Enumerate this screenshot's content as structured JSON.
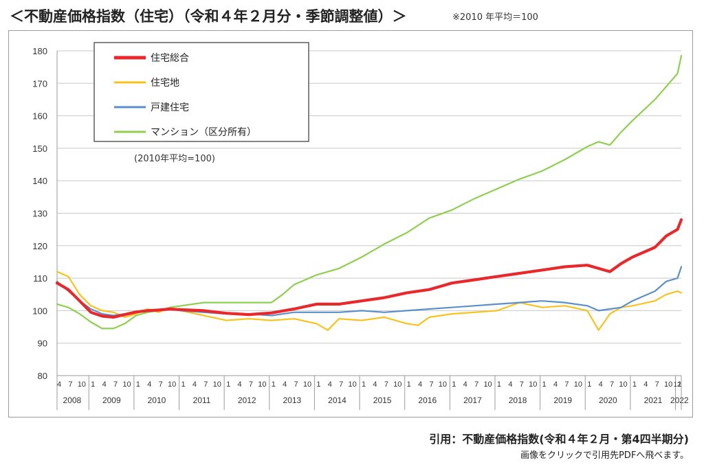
{
  "header": {
    "title": "＜不動産価格指数（住宅）（令和４年２月分・季節調整値）＞",
    "note": "※2010 年平均＝100"
  },
  "footer": {
    "citation": "引用：不動産価格指数(令和４年２月・第4四半期分)",
    "link_text": "画像をクリックで引用先PDFへ飛べます。"
  },
  "colors": {
    "総合": "#e8282b",
    "住宅地": "#f7c21c",
    "戸建住宅": "#5b8fca",
    "マンション": "#8dcf4f",
    "grid": "#c8c8c8"
  },
  "chart_data": {
    "type": "line",
    "y_ticks": [
      80,
      90,
      100,
      110,
      120,
      130,
      140,
      150,
      160,
      170,
      180
    ],
    "ylim": [
      80,
      180
    ],
    "grid": true,
    "legend_position": "top-left",
    "annotation": "(2010年平均=100)",
    "x_start": "2008-04",
    "x_end": "2022-02",
    "years": [
      "2008",
      "2009",
      "2010",
      "2011",
      "2012",
      "2013",
      "2014",
      "2015",
      "2016",
      "2017",
      "2018",
      "2019",
      "2020",
      "2021",
      "2022"
    ],
    "month_ticks": [
      "1",
      "4",
      "7",
      "10"
    ],
    "last_month_tick": "12",
    "series": [
      {
        "name": "住宅総合",
        "key": "総合",
        "points": [
          [
            "2008-04",
            108.5
          ],
          [
            "2008-07",
            106.5
          ],
          [
            "2008-10",
            103
          ],
          [
            "2009-01",
            99.5
          ],
          [
            "2009-04",
            98.3
          ],
          [
            "2009-07",
            98
          ],
          [
            "2009-10",
            98.8
          ],
          [
            "2010-01",
            99.6
          ],
          [
            "2010-04",
            100
          ],
          [
            "2010-07",
            100.2
          ],
          [
            "2010-10",
            100.5
          ],
          [
            "2011-01",
            100.3
          ],
          [
            "2011-07",
            100
          ],
          [
            "2012-01",
            99.2
          ],
          [
            "2012-07",
            98.8
          ],
          [
            "2013-01",
            99.3
          ],
          [
            "2013-07",
            100.5
          ],
          [
            "2014-01",
            102
          ],
          [
            "2014-07",
            102
          ],
          [
            "2015-01",
            103
          ],
          [
            "2015-07",
            104
          ],
          [
            "2016-01",
            105.5
          ],
          [
            "2016-07",
            106.5
          ],
          [
            "2017-01",
            108.5
          ],
          [
            "2017-07",
            109.5
          ],
          [
            "2018-01",
            110.5
          ],
          [
            "2018-07",
            111.5
          ],
          [
            "2019-01",
            112.5
          ],
          [
            "2019-07",
            113.5
          ],
          [
            "2020-01",
            114
          ],
          [
            "2020-04",
            113
          ],
          [
            "2020-07",
            112
          ],
          [
            "2020-10",
            114.5
          ],
          [
            "2021-01",
            116.5
          ],
          [
            "2021-07",
            119.5
          ],
          [
            "2021-10",
            123
          ],
          [
            "2022-01",
            125
          ],
          [
            "2022-02",
            128
          ]
        ]
      },
      {
        "name": "住宅地",
        "key": "住宅地",
        "points": [
          [
            "2008-04",
            112
          ],
          [
            "2008-07",
            110.5
          ],
          [
            "2008-10",
            105
          ],
          [
            "2009-01",
            101.5
          ],
          [
            "2009-04",
            100
          ],
          [
            "2009-07",
            99.5
          ],
          [
            "2009-10",
            98
          ],
          [
            "2010-01",
            99
          ],
          [
            "2010-04",
            100.5
          ],
          [
            "2010-07",
            99.5
          ],
          [
            "2010-10",
            101
          ],
          [
            "2011-01",
            100
          ],
          [
            "2011-07",
            98.5
          ],
          [
            "2012-01",
            97
          ],
          [
            "2012-07",
            97.5
          ],
          [
            "2013-01",
            97
          ],
          [
            "2013-07",
            97.5
          ],
          [
            "2014-01",
            96
          ],
          [
            "2014-04",
            94
          ],
          [
            "2014-07",
            97.5
          ],
          [
            "2015-01",
            97
          ],
          [
            "2015-07",
            98
          ],
          [
            "2016-01",
            96
          ],
          [
            "2016-04",
            95.5
          ],
          [
            "2016-07",
            98
          ],
          [
            "2017-01",
            99
          ],
          [
            "2017-07",
            99.5
          ],
          [
            "2018-01",
            100
          ],
          [
            "2018-07",
            102.5
          ],
          [
            "2019-01",
            101
          ],
          [
            "2019-07",
            101.5
          ],
          [
            "2020-01",
            100
          ],
          [
            "2020-04",
            94
          ],
          [
            "2020-07",
            99
          ],
          [
            "2020-10",
            101
          ],
          [
            "2021-01",
            101.5
          ],
          [
            "2021-07",
            103
          ],
          [
            "2021-10",
            105
          ],
          [
            "2022-01",
            106
          ],
          [
            "2022-02",
            105.5
          ]
        ]
      },
      {
        "name": "戸建住宅",
        "key": "戸建住宅",
        "points": [
          [
            "2008-04",
            109
          ],
          [
            "2008-07",
            106
          ],
          [
            "2008-10",
            103
          ],
          [
            "2009-01",
            100.5
          ],
          [
            "2009-04",
            99
          ],
          [
            "2009-07",
            98.5
          ],
          [
            "2009-10",
            99
          ],
          [
            "2010-01",
            99.5
          ],
          [
            "2010-04",
            100
          ],
          [
            "2010-07",
            100
          ],
          [
            "2010-10",
            100.5
          ],
          [
            "2011-01",
            100
          ],
          [
            "2011-07",
            99.5
          ],
          [
            "2012-01",
            99
          ],
          [
            "2012-07",
            99
          ],
          [
            "2013-01",
            98.5
          ],
          [
            "2013-07",
            99.5
          ],
          [
            "2014-01",
            99.5
          ],
          [
            "2014-07",
            99.5
          ],
          [
            "2015-01",
            100
          ],
          [
            "2015-07",
            99.5
          ],
          [
            "2016-01",
            100
          ],
          [
            "2016-07",
            100.5
          ],
          [
            "2017-01",
            101
          ],
          [
            "2017-07",
            101.5
          ],
          [
            "2018-01",
            102
          ],
          [
            "2018-07",
            102.5
          ],
          [
            "2019-01",
            103
          ],
          [
            "2019-07",
            102.5
          ],
          [
            "2020-01",
            101.5
          ],
          [
            "2020-04",
            100
          ],
          [
            "2020-07",
            100.5
          ],
          [
            "2020-10",
            101
          ],
          [
            "2021-01",
            103
          ],
          [
            "2021-07",
            106
          ],
          [
            "2021-10",
            109
          ],
          [
            "2022-01",
            110
          ],
          [
            "2022-02",
            113.5
          ]
        ]
      },
      {
        "name": "マンション（区分所有）",
        "key": "マンション",
        "points": [
          [
            "2008-04",
            102
          ],
          [
            "2008-07",
            101
          ],
          [
            "2008-10",
            99
          ],
          [
            "2009-01",
            96.5
          ],
          [
            "2009-04",
            94.5
          ],
          [
            "2009-07",
            94.5
          ],
          [
            "2009-10",
            96
          ],
          [
            "2010-01",
            98.5
          ],
          [
            "2010-04",
            99.5
          ],
          [
            "2010-07",
            100
          ],
          [
            "2010-10",
            101
          ],
          [
            "2011-01",
            101.5
          ],
          [
            "2011-07",
            102.5
          ],
          [
            "2012-01",
            102.5
          ],
          [
            "2012-07",
            102.5
          ],
          [
            "2013-01",
            102.5
          ],
          [
            "2013-04",
            105
          ],
          [
            "2013-07",
            108
          ],
          [
            "2014-01",
            111
          ],
          [
            "2014-07",
            113
          ],
          [
            "2015-01",
            116.5
          ],
          [
            "2015-07",
            120.5
          ],
          [
            "2016-01",
            124
          ],
          [
            "2016-07",
            128.5
          ],
          [
            "2017-01",
            131
          ],
          [
            "2017-07",
            134.5
          ],
          [
            "2018-01",
            137.5
          ],
          [
            "2018-07",
            140.5
          ],
          [
            "2019-01",
            143
          ],
          [
            "2019-07",
            146.5
          ],
          [
            "2020-01",
            150.5
          ],
          [
            "2020-04",
            152
          ],
          [
            "2020-07",
            151
          ],
          [
            "2020-10",
            155
          ],
          [
            "2021-01",
            158.5
          ],
          [
            "2021-07",
            165
          ],
          [
            "2021-10",
            169
          ],
          [
            "2022-01",
            173
          ],
          [
            "2022-02",
            178.5
          ]
        ]
      }
    ]
  }
}
